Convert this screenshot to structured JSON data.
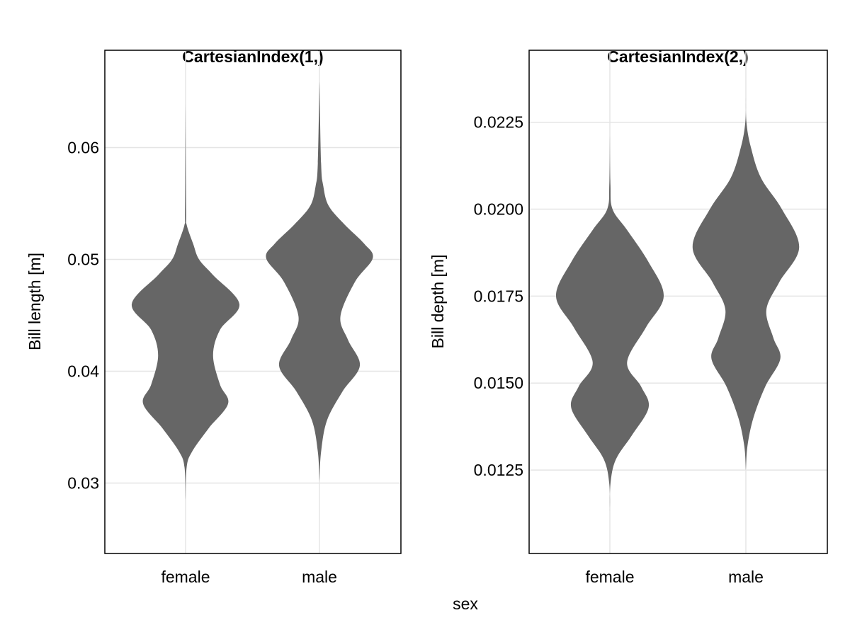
{
  "chart_data": [
    {
      "type": "violin",
      "title": "CartesianIndex(1,)",
      "xlabel": "",
      "ylabel": "Bill length [m]",
      "categories": [
        "female",
        "male"
      ],
      "yticks": [
        0.03,
        0.04,
        0.05,
        0.06
      ],
      "ytick_labels": [
        "0.03",
        "0.04",
        "0.05",
        "0.06"
      ],
      "ylim": [
        0.0237,
        0.0687
      ],
      "grid": true,
      "fill_color": "#666666",
      "violins": [
        {
          "category": "female",
          "y": [
            0.0639,
            0.0543,
            0.0531,
            0.0514,
            0.05,
            0.0486,
            0.046,
            0.0437,
            0.0414,
            0.0388,
            0.0371,
            0.0349,
            0.0328,
            0.0314,
            0.0285
          ],
          "relative_density": [
            0,
            0.01,
            0.02,
            0.14,
            0.25,
            0.51,
            1.0,
            0.64,
            0.51,
            0.64,
            0.79,
            0.43,
            0.12,
            0.02,
            0
          ]
        },
        {
          "category": "male",
          "y": [
            0.0659,
            0.0586,
            0.0566,
            0.0548,
            0.0531,
            0.0514,
            0.0501,
            0.048,
            0.0449,
            0.0428,
            0.0405,
            0.0382,
            0.0356,
            0.0328,
            0.0302
          ],
          "relative_density": [
            0,
            0.03,
            0.07,
            0.17,
            0.47,
            0.83,
            0.99,
            0.66,
            0.39,
            0.53,
            0.75,
            0.43,
            0.14,
            0.03,
            0
          ]
        }
      ]
    },
    {
      "type": "violin",
      "title": "CartesianIndex(2,)",
      "xlabel": "",
      "ylabel": "Bill depth [m]",
      "categories": [
        "female",
        "male"
      ],
      "yticks": [
        0.0125,
        0.015,
        0.0175,
        0.02,
        0.0225
      ],
      "ytick_labels": [
        "0.0125",
        "0.0150",
        "0.0175",
        "0.0200",
        "0.0225"
      ],
      "ylim": [
        0.0101,
        0.02457
      ],
      "grid": true,
      "fill_color": "#666666",
      "violins": [
        {
          "category": "female",
          "y": [
            0.0221,
            0.0207,
            0.02,
            0.0194,
            0.0185,
            0.0175,
            0.0166,
            0.0156,
            0.0149,
            0.0143,
            0.0135,
            0.0128,
            0.0121,
            0.0113
          ],
          "relative_density": [
            0,
            0.01,
            0.05,
            0.32,
            0.71,
            1.0,
            0.67,
            0.32,
            0.58,
            0.72,
            0.41,
            0.11,
            0.01,
            0
          ]
        },
        {
          "category": "male",
          "y": [
            0.0232,
            0.0225,
            0.0218,
            0.0209,
            0.02,
            0.0189,
            0.0179,
            0.0171,
            0.0163,
            0.0157,
            0.0149,
            0.014,
            0.0132,
            0.0125
          ],
          "relative_density": [
            0,
            0.01,
            0.09,
            0.28,
            0.67,
            0.99,
            0.62,
            0.38,
            0.51,
            0.64,
            0.36,
            0.14,
            0.03,
            0
          ]
        }
      ]
    }
  ],
  "shared_xlabel": "sex"
}
